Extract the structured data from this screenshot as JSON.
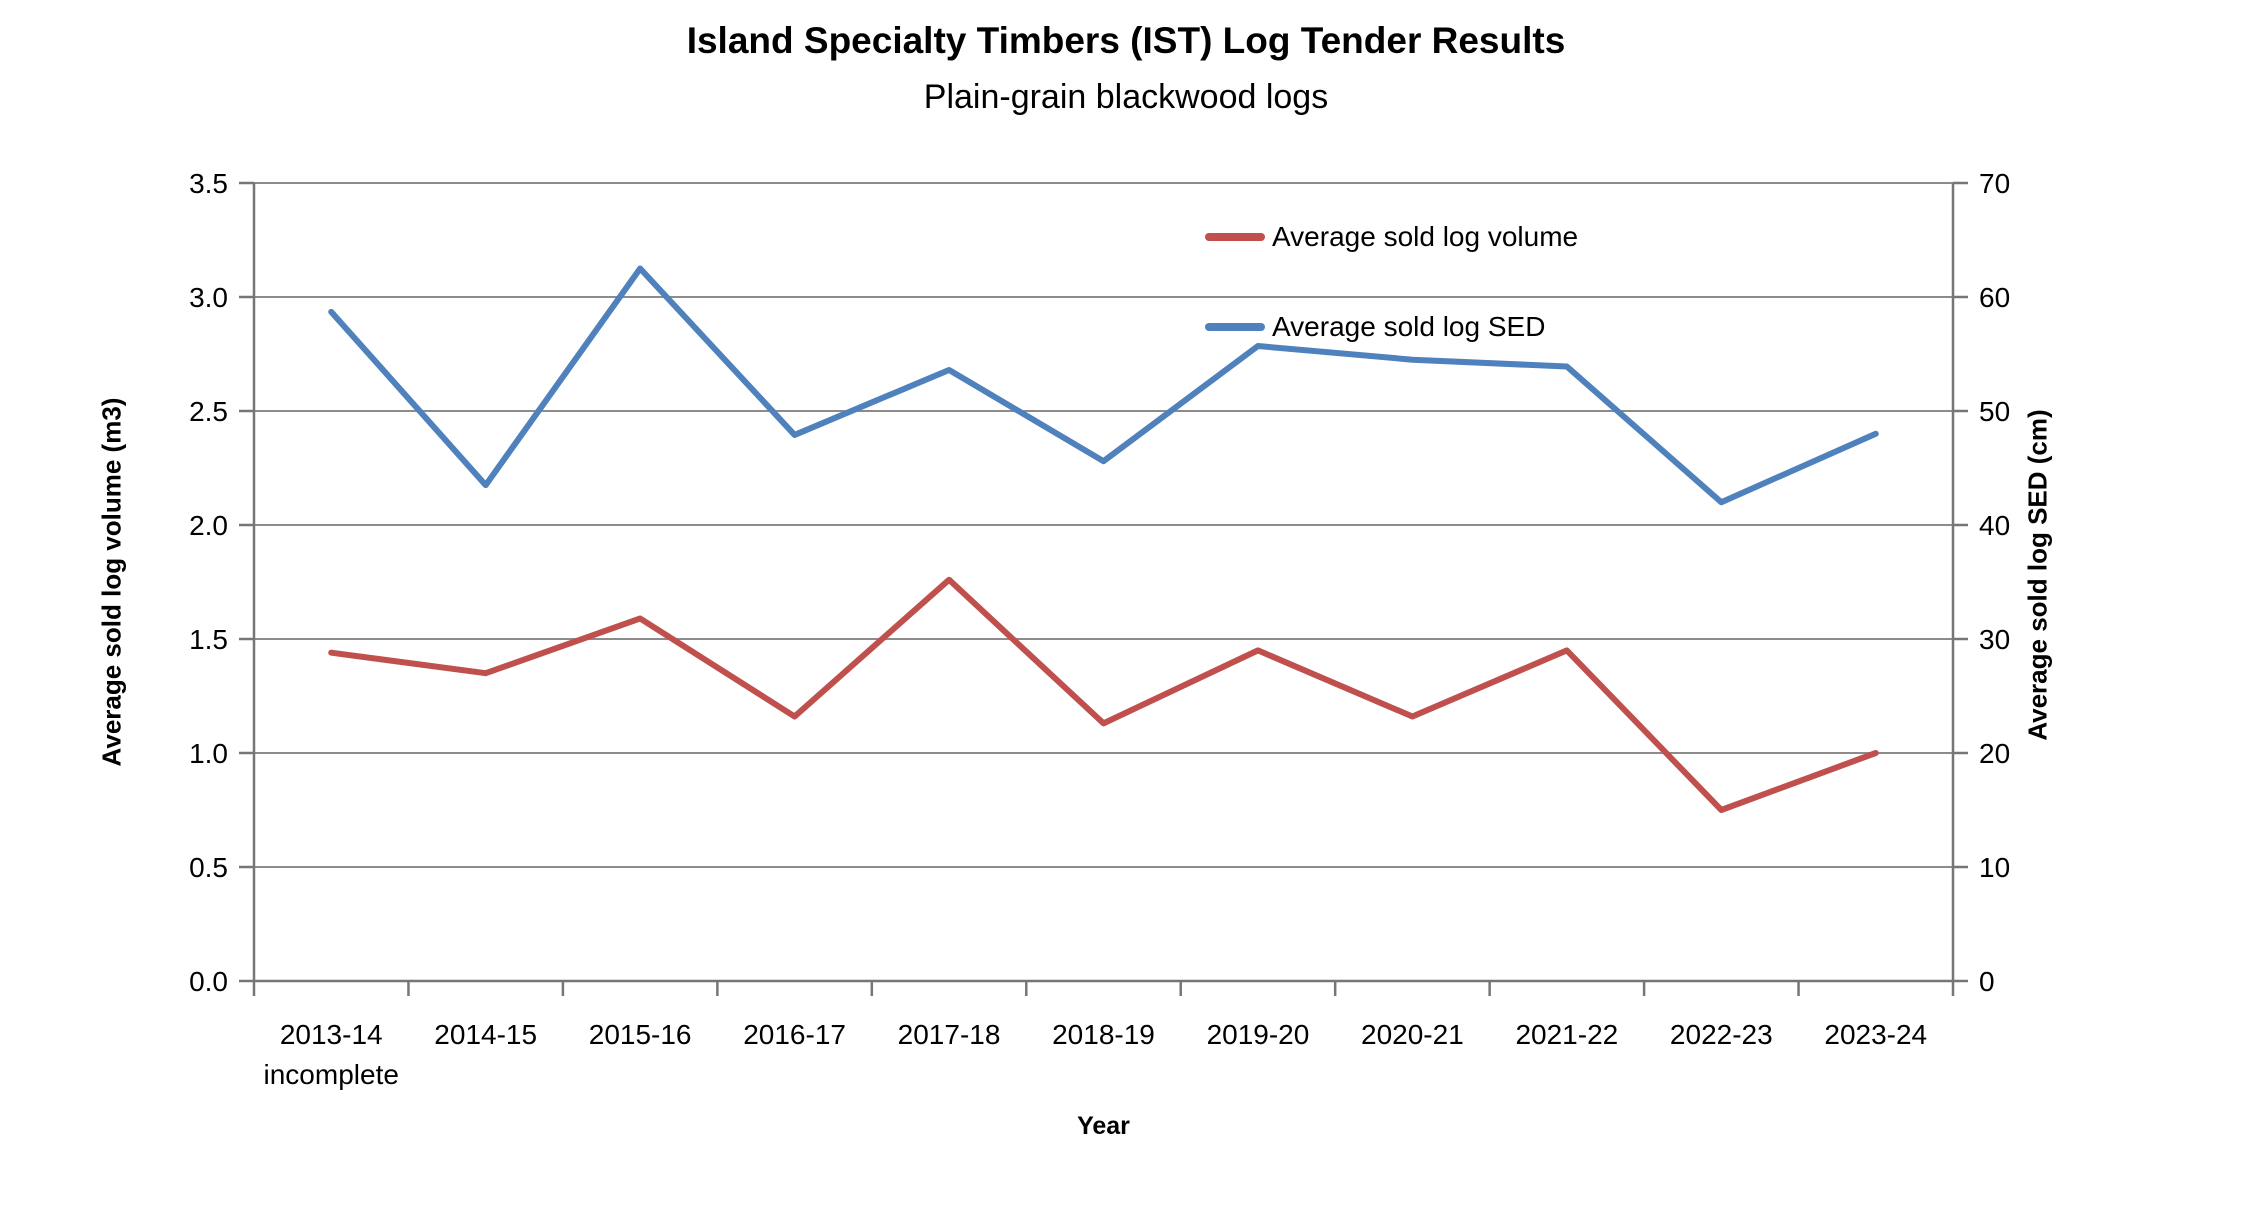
{
  "chart": {
    "title": "Island Specialty Timbers (IST) Log Tender Results",
    "subtitle": "Plain-grain blackwood logs"
  },
  "chart_data": {
    "type": "line",
    "title": "Island Specialty Timbers (IST) Log Tender Results",
    "subtitle": "Plain-grain blackwood logs",
    "categories": [
      "2013-14",
      "2014-15",
      "2015-16",
      "2016-17",
      "2017-18",
      "2018-19",
      "2019-20",
      "2020-21",
      "2021-22",
      "2022-23",
      "2023-24"
    ],
    "category_note": {
      "index": 0,
      "text": "incomplete"
    },
    "series": [
      {
        "name": "Average sold log volume",
        "axis": "left",
        "color": "#C0504D",
        "values": [
          1.44,
          1.35,
          1.59,
          1.16,
          1.76,
          1.13,
          1.45,
          1.16,
          1.45,
          0.75,
          1.0
        ]
      },
      {
        "name": "Average sold log SED",
        "axis": "right",
        "color": "#4F81BD",
        "values": [
          58.7,
          43.5,
          62.5,
          47.9,
          53.6,
          45.6,
          55.7,
          54.5,
          53.9,
          42.0,
          48.0
        ]
      }
    ],
    "x_axis": {
      "title": "Year"
    },
    "left_axis": {
      "title": "Average sold log volume (m3)",
      "min": 0,
      "max": 3.5,
      "step": 0.5,
      "tick_labels": [
        "0.0",
        "0.5",
        "1.0",
        "1.5",
        "2.0",
        "2.5",
        "3.0",
        "3.5"
      ]
    },
    "right_axis": {
      "title": "Average sold log SED (cm)",
      "min": 0,
      "max": 70,
      "step": 10,
      "tick_labels": [
        "0",
        "10",
        "20",
        "30",
        "40",
        "50",
        "60",
        "70"
      ]
    },
    "legend_position": "inside-top-right",
    "grid": "horizontal",
    "style": {
      "gridline_color": "#8C8C8C",
      "axis_color": "#767676",
      "text_color": "#000000",
      "background": "#FFFFFF"
    }
  }
}
